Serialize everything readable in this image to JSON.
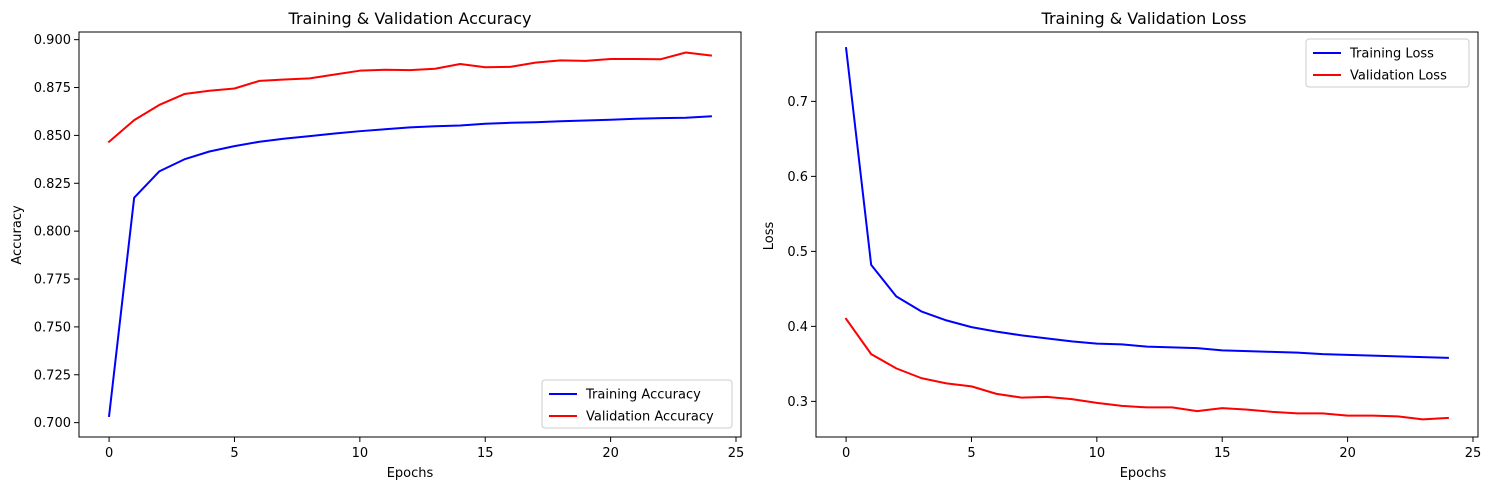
{
  "chart_data": [
    {
      "type": "line",
      "title": "Training & Validation Accuracy",
      "xlabel": "Epochs",
      "ylabel": "Accuracy",
      "xlim": [
        -1.2,
        25.2
      ],
      "ylim": [
        0.6925,
        0.904
      ],
      "xticks": [
        0,
        5,
        10,
        15,
        20,
        25
      ],
      "xtick_labels": [
        "0",
        "5",
        "10",
        "15",
        "20",
        "25"
      ],
      "yticks": [
        0.7,
        0.725,
        0.75,
        0.775,
        0.8,
        0.825,
        0.85,
        0.875,
        0.9
      ],
      "ytick_labels": [
        "0.700",
        "0.725",
        "0.750",
        "0.775",
        "0.800",
        "0.825",
        "0.850",
        "0.875",
        "0.900"
      ],
      "grid": false,
      "legend_position": "lower right",
      "x": [
        0,
        1,
        2,
        3,
        4,
        5,
        6,
        7,
        8,
        9,
        10,
        11,
        12,
        13,
        14,
        15,
        16,
        17,
        18,
        19,
        20,
        21,
        22,
        23,
        24
      ],
      "series": [
        {
          "name": "Training Accuracy",
          "color": "#0000ff",
          "values": [
            0.7035,
            0.8175,
            0.8312,
            0.8375,
            0.8416,
            0.8444,
            0.8467,
            0.8483,
            0.8496,
            0.851,
            0.8522,
            0.8532,
            0.8542,
            0.8548,
            0.8552,
            0.8561,
            0.8566,
            0.8569,
            0.8574,
            0.8578,
            0.8582,
            0.8587,
            0.859,
            0.8592,
            0.86
          ]
        },
        {
          "name": "Validation Accuracy",
          "color": "#ff0000",
          "values": [
            0.8467,
            0.858,
            0.8659,
            0.8716,
            0.8733,
            0.8745,
            0.8785,
            0.8792,
            0.8798,
            0.8818,
            0.8838,
            0.8843,
            0.8841,
            0.8848,
            0.8873,
            0.8856,
            0.8858,
            0.888,
            0.8892,
            0.8889,
            0.8899,
            0.8899,
            0.8898,
            0.8933,
            0.8917
          ]
        }
      ]
    },
    {
      "type": "line",
      "title": "Training & Validation Loss",
      "xlabel": "Epochs",
      "ylabel": "Loss",
      "xlim": [
        -1.2,
        25.2
      ],
      "ylim": [
        0.2525,
        0.7925
      ],
      "xticks": [
        0,
        5,
        10,
        15,
        20,
        25
      ],
      "xtick_labels": [
        "0",
        "5",
        "10",
        "15",
        "20",
        "25"
      ],
      "yticks": [
        0.3,
        0.4,
        0.5,
        0.6,
        0.7
      ],
      "ytick_labels": [
        "0.3",
        "0.4",
        "0.5",
        "0.6",
        "0.7"
      ],
      "grid": false,
      "legend_position": "upper right",
      "x": [
        0,
        1,
        2,
        3,
        4,
        5,
        6,
        7,
        8,
        9,
        10,
        11,
        12,
        13,
        14,
        15,
        16,
        17,
        18,
        19,
        20,
        21,
        22,
        23,
        24
      ],
      "series": [
        {
          "name": "Training Loss",
          "color": "#0000ff",
          "values": [
            0.771,
            0.482,
            0.44,
            0.42,
            0.408,
            0.399,
            0.393,
            0.388,
            0.384,
            0.38,
            0.377,
            0.376,
            0.373,
            0.372,
            0.371,
            0.368,
            0.367,
            0.366,
            0.365,
            0.363,
            0.362,
            0.361,
            0.36,
            0.359,
            0.358
          ]
        },
        {
          "name": "Validation Loss",
          "color": "#ff0000",
          "values": [
            0.41,
            0.363,
            0.344,
            0.331,
            0.324,
            0.32,
            0.31,
            0.305,
            0.306,
            0.303,
            0.298,
            0.294,
            0.292,
            0.292,
            0.287,
            0.291,
            0.289,
            0.286,
            0.284,
            0.284,
            0.281,
            0.281,
            0.28,
            0.276,
            0.278
          ]
        }
      ]
    }
  ]
}
